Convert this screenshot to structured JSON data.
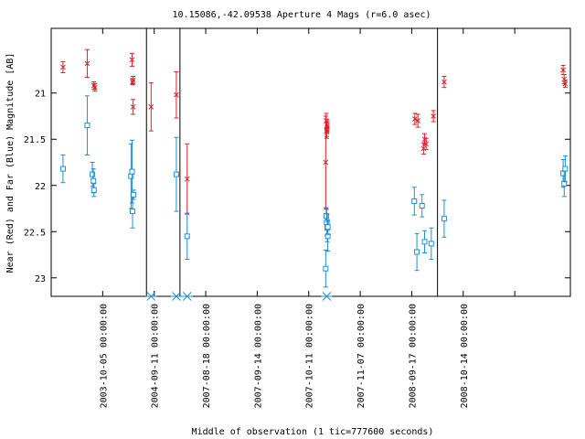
{
  "chart_data": {
    "type": "scatter",
    "title": "10.15086,-42.09538   Aperture 4 Mags (r=6.0 asec)",
    "xlabel": "Middle of observation (1 tic=777600 seconds)",
    "ylabel": "Near (Red) and Far (Blue) Magnitude [AB]",
    "y_axis_inverted": true,
    "ylim": [
      23.2,
      20.3
    ],
    "y_ticks": [
      21,
      21.5,
      22,
      22.5,
      23
    ],
    "y_tick_labels": [
      "21",
      "21.5",
      "22",
      "22.5",
      "23"
    ],
    "xlim": [
      0,
      10.08
    ],
    "x_ticks": [
      1,
      2,
      3,
      4,
      5,
      6,
      7,
      8,
      9
    ],
    "x_tick_labels": [
      "2003-10-05 00:00:00",
      "2004-09-11 00:00:00",
      "2007-08-18 00:00:00",
      "2007-09-14 00:00:00",
      "2007-10-11 00:00:00",
      "2007-11-07 00:00:00",
      "2008-09-17 00:00:00",
      "2008-10-14 00:00:00",
      ""
    ],
    "segment_boundaries": [
      1.85,
      2.5,
      7.5
    ],
    "grid": false,
    "series": [
      {
        "color": "#e0202a",
        "marker": "x",
        "points": [
          {
            "x": 0.23,
            "y": 20.72,
            "err": 0.06
          },
          {
            "x": 0.7,
            "y": 20.68,
            "err": 0.15
          },
          {
            "x": 0.83,
            "y": 20.92,
            "err": 0.04
          },
          {
            "x": 0.85,
            "y": 20.94,
            "err": 0.04
          },
          {
            "x": 1.57,
            "y": 20.64,
            "err": 0.07
          },
          {
            "x": 1.58,
            "y": 20.88,
            "err": 0.03
          },
          {
            "x": 1.59,
            "y": 20.86,
            "err": 0.04
          },
          {
            "x": 1.59,
            "y": 21.15,
            "err": 0.08
          },
          {
            "x": 1.94,
            "y": 21.15,
            "err": 0.26
          },
          {
            "x": 2.43,
            "y": 21.02,
            "err": 0.25
          },
          {
            "x": 2.64,
            "y": 21.93,
            "err": 0.38
          },
          {
            "x": 5.33,
            "y": 21.75,
            "err": 0.5
          },
          {
            "x": 5.34,
            "y": 21.3,
            "err": 0.08
          },
          {
            "x": 5.35,
            "y": 21.4,
            "err": 0.09
          },
          {
            "x": 5.35,
            "y": 21.42,
            "err": 0.05
          },
          {
            "x": 5.36,
            "y": 21.35,
            "err": 0.06
          },
          {
            "x": 5.36,
            "y": 21.37,
            "err": 0.06
          },
          {
            "x": 7.06,
            "y": 21.28,
            "err": 0.06
          },
          {
            "x": 7.12,
            "y": 21.3,
            "err": 0.07
          },
          {
            "x": 7.23,
            "y": 21.6,
            "err": 0.06
          },
          {
            "x": 7.25,
            "y": 21.5,
            "err": 0.06
          },
          {
            "x": 7.28,
            "y": 21.55,
            "err": 0.06
          },
          {
            "x": 7.42,
            "y": 21.25,
            "err": 0.06
          },
          {
            "x": 7.63,
            "y": 20.88,
            "err": 0.06
          },
          {
            "x": 9.94,
            "y": 20.75,
            "err": 0.05
          },
          {
            "x": 9.96,
            "y": 20.85,
            "err": 0.05
          },
          {
            "x": 9.98,
            "y": 20.9,
            "err": 0.04
          }
        ]
      },
      {
        "color": "#1f8fd0",
        "marker": "square",
        "points": [
          {
            "x": 0.23,
            "y": 21.82,
            "err": 0.15
          },
          {
            "x": 0.7,
            "y": 21.35,
            "err": 0.32
          },
          {
            "x": 0.8,
            "y": 21.88,
            "err": 0.13
          },
          {
            "x": 0.82,
            "y": 21.95,
            "err": 0.13
          },
          {
            "x": 0.83,
            "y": 22.05,
            "err": 0.07
          },
          {
            "x": 1.55,
            "y": 21.9,
            "err": 0.35
          },
          {
            "x": 1.57,
            "y": 21.85,
            "err": 0.34
          },
          {
            "x": 1.58,
            "y": 22.28,
            "err": 0.18
          },
          {
            "x": 1.6,
            "y": 22.1,
            "err": 0.05
          },
          {
            "x": 2.43,
            "y": 21.88,
            "err": 0.4
          },
          {
            "x": 2.64,
            "y": 22.55,
            "err": 0.25
          },
          {
            "x": 5.33,
            "y": 22.9,
            "err": 0.2
          },
          {
            "x": 5.34,
            "y": 22.33,
            "err": 0.09
          },
          {
            "x": 5.35,
            "y": 22.4,
            "err": 0.14
          },
          {
            "x": 5.36,
            "y": 22.46,
            "err": 0.15
          },
          {
            "x": 5.37,
            "y": 22.55,
            "err": 0.16
          },
          {
            "x": 5.37,
            "y": 22.45,
            "err": 0.08
          },
          {
            "x": 7.05,
            "y": 22.17,
            "err": 0.15
          },
          {
            "x": 7.1,
            "y": 22.72,
            "err": 0.2
          },
          {
            "x": 7.2,
            "y": 22.22,
            "err": 0.12
          },
          {
            "x": 7.25,
            "y": 22.61,
            "err": 0.12
          },
          {
            "x": 7.38,
            "y": 22.63,
            "err": 0.17
          },
          {
            "x": 7.63,
            "y": 22.36,
            "err": 0.2
          },
          {
            "x": 9.94,
            "y": 21.87,
            "err": 0.15
          },
          {
            "x": 9.96,
            "y": 21.98,
            "err": 0.14
          },
          {
            "x": 9.98,
            "y": 21.82,
            "err": 0.14
          }
        ]
      }
    ],
    "upper_limits": {
      "color": "#1f8fd0",
      "marker": "asterisk",
      "x": [
        1.94,
        2.43,
        2.64,
        5.35
      ]
    }
  }
}
